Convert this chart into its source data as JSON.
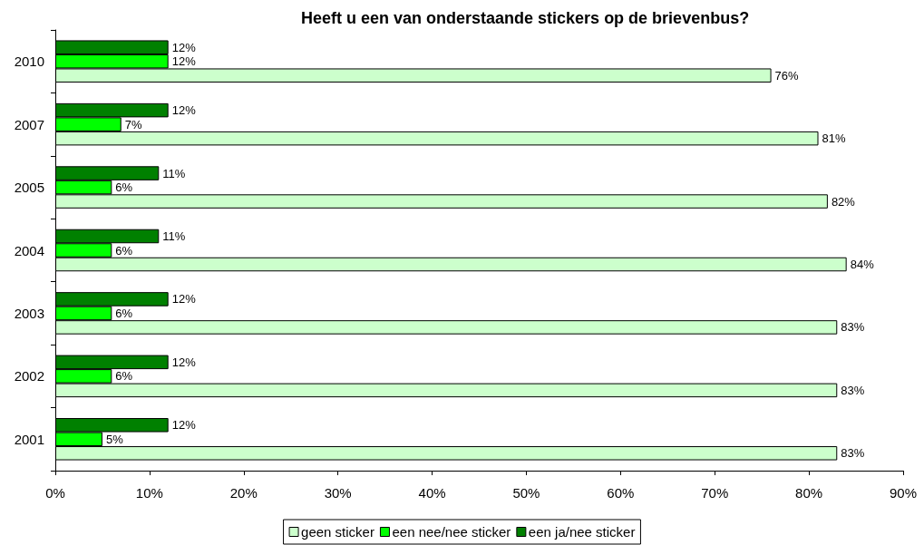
{
  "chart_data": {
    "type": "bar",
    "orientation": "horizontal",
    "title": "Heeft u een van onderstaande stickers op de brievenbus?",
    "categories": [
      "2010",
      "2007",
      "2005",
      "2004",
      "2003",
      "2002",
      "2001"
    ],
    "series": [
      {
        "name": "geen sticker",
        "color": "#ccffcc",
        "values": [
          76,
          81,
          82,
          84,
          83,
          83,
          83
        ],
        "value_labels": [
          "76%",
          "81%",
          "82%",
          "84%",
          "83%",
          "83%",
          "83%"
        ]
      },
      {
        "name": "een nee/nee sticker",
        "color": "#00ff00",
        "values": [
          12,
          7,
          6,
          6,
          6,
          6,
          5
        ],
        "value_labels": [
          "12%",
          "7%",
          "6%",
          "6%",
          "6%",
          "6%",
          "5%"
        ]
      },
      {
        "name": "een ja/nee sticker",
        "color": "#008000",
        "values": [
          12,
          12,
          11,
          11,
          12,
          12,
          12
        ],
        "value_labels": [
          "12%",
          "12%",
          "11%",
          "11%",
          "12%",
          "12%",
          "12%"
        ]
      }
    ],
    "xlim": [
      0,
      90
    ],
    "xticks": [
      {
        "value": 0,
        "label": "0%"
      },
      {
        "value": 10,
        "label": "10%"
      },
      {
        "value": 20,
        "label": "20%"
      },
      {
        "value": 30,
        "label": "30%"
      },
      {
        "value": 40,
        "label": "40%"
      },
      {
        "value": 50,
        "label": "50%"
      },
      {
        "value": 60,
        "label": "60%"
      },
      {
        "value": 70,
        "label": "70%"
      },
      {
        "value": 80,
        "label": "80%"
      },
      {
        "value": 90,
        "label": "90%"
      }
    ],
    "grid": false,
    "legend": "bottom"
  }
}
